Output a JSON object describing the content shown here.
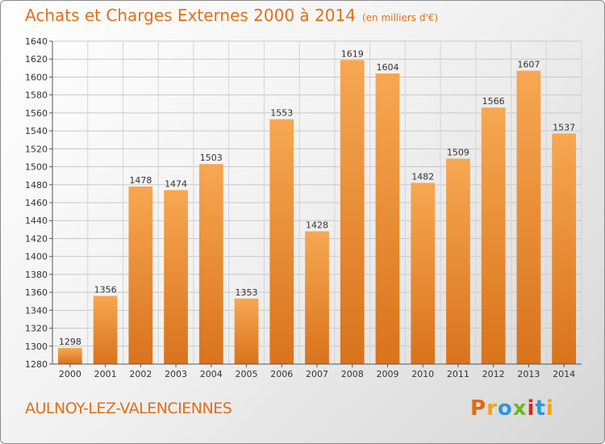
{
  "title": "Achats et Charges Externes 2000 à 2014",
  "subtitle": "(en milliers d'€)",
  "city": "AULNOY-LEZ-VALENCIENNES",
  "logo": {
    "text": "Proxiti",
    "letters": [
      "P",
      "r",
      "o",
      "x",
      "i",
      "t",
      "i"
    ]
  },
  "colors": {
    "accent": "#e0701a",
    "bar_top": "#f7a752",
    "bar_bottom": "#d9731c"
  },
  "chart_data": {
    "type": "bar",
    "categories": [
      "2000",
      "2001",
      "2002",
      "2003",
      "2004",
      "2005",
      "2006",
      "2007",
      "2008",
      "2009",
      "2010",
      "2011",
      "2012",
      "2013",
      "2014"
    ],
    "values": [
      1298,
      1356,
      1478,
      1474,
      1503,
      1353,
      1553,
      1428,
      1619,
      1604,
      1482,
      1509,
      1566,
      1607,
      1537
    ],
    "title": "Achats et Charges Externes 2000 à 2014",
    "ylim": [
      1280,
      1640
    ],
    "yticks": [
      1280,
      1300,
      1320,
      1340,
      1360,
      1380,
      1400,
      1420,
      1440,
      1460,
      1480,
      1500,
      1520,
      1540,
      1560,
      1580,
      1600,
      1620,
      1640
    ],
    "grid": true
  }
}
